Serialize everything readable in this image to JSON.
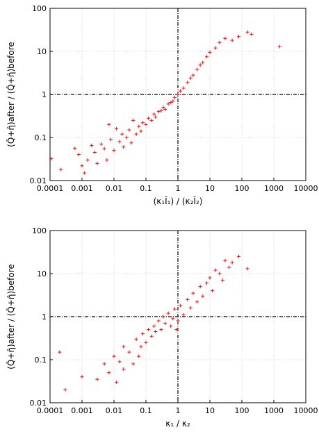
{
  "chart_data": [
    {
      "type": "scatter",
      "title": "",
      "xlabel": "(κ₁Î₁) / (κ₂Î₂)",
      "ylabel": "(Q̂+η̂)after / (Q̂+η̂)before",
      "xscale": "log",
      "yscale": "log",
      "xlim": [
        0.0001,
        10000
      ],
      "ylim": [
        0.01,
        100
      ],
      "x_ticks": [
        "0.0001",
        "0.001",
        "0.01",
        "0.1",
        "1",
        "10",
        "100",
        "1000",
        "10000"
      ],
      "y_ticks": [
        "0.01",
        "0.1",
        "1",
        "10",
        "100"
      ],
      "reference_lines": {
        "x": 1,
        "y": 1
      },
      "grid": true,
      "marker": "+",
      "color": "#ee1111",
      "points": [
        [
          0.00011,
          0.032
        ],
        [
          0.00022,
          0.018
        ],
        [
          0.0006,
          0.056
        ],
        [
          0.0008,
          0.04
        ],
        [
          0.001,
          0.022
        ],
        [
          0.0012,
          0.015
        ],
        [
          0.0015,
          0.03
        ],
        [
          0.002,
          0.065
        ],
        [
          0.0025,
          0.045
        ],
        [
          0.003,
          0.025
        ],
        [
          0.004,
          0.07
        ],
        [
          0.005,
          0.055
        ],
        [
          0.006,
          0.03
        ],
        [
          0.007,
          0.2
        ],
        [
          0.008,
          0.09
        ],
        [
          0.01,
          0.05
        ],
        [
          0.012,
          0.16
        ],
        [
          0.015,
          0.08
        ],
        [
          0.018,
          0.12
        ],
        [
          0.02,
          0.06
        ],
        [
          0.025,
          0.1
        ],
        [
          0.03,
          0.15
        ],
        [
          0.035,
          0.075
        ],
        [
          0.04,
          0.25
        ],
        [
          0.05,
          0.12
        ],
        [
          0.06,
          0.18
        ],
        [
          0.07,
          0.14
        ],
        [
          0.08,
          0.22
        ],
        [
          0.1,
          0.2
        ],
        [
          0.12,
          0.28
        ],
        [
          0.15,
          0.25
        ],
        [
          0.18,
          0.35
        ],
        [
          0.2,
          0.3
        ],
        [
          0.25,
          0.4
        ],
        [
          0.3,
          0.42
        ],
        [
          0.35,
          0.5
        ],
        [
          0.4,
          0.45
        ],
        [
          0.5,
          0.6
        ],
        [
          0.6,
          0.65
        ],
        [
          0.7,
          0.7
        ],
        [
          0.8,
          0.85
        ],
        [
          1.0,
          1.0
        ],
        [
          1.2,
          1.2
        ],
        [
          1.5,
          1.4
        ],
        [
          2.0,
          1.9
        ],
        [
          2.5,
          2.4
        ],
        [
          3.0,
          2.8
        ],
        [
          4.0,
          3.8
        ],
        [
          5.0,
          4.8
        ],
        [
          6.0,
          5.5
        ],
        [
          8.0,
          7.5
        ],
        [
          10.0,
          9.5
        ],
        [
          15.0,
          12.0
        ],
        [
          20.0,
          16.0
        ],
        [
          30.0,
          20.0
        ],
        [
          50.0,
          18.0
        ],
        [
          80.0,
          22.0
        ],
        [
          150.0,
          28.0
        ],
        [
          200.0,
          25.0
        ],
        [
          1500.0,
          13.0
        ]
      ]
    },
    {
      "type": "scatter",
      "title": "",
      "xlabel": "κ₁ / κ₂",
      "ylabel": "(Q̂+η̂)after / (Q̂+η̂)before",
      "xscale": "log",
      "yscale": "log",
      "xlim": [
        0.0001,
        10000
      ],
      "ylim": [
        0.01,
        100
      ],
      "x_ticks": [
        "0.0001",
        "0.001",
        "0.01",
        "0.1",
        "1",
        "10",
        "100",
        "1000",
        "10000"
      ],
      "y_ticks": [
        "0.01",
        "0.1",
        "1",
        "10",
        "100"
      ],
      "reference_lines": {
        "x": 1,
        "y": 1
      },
      "grid": true,
      "marker": "+",
      "color": "#ee1111",
      "points": [
        [
          0.0002,
          0.15
        ],
        [
          0.0003,
          0.02
        ],
        [
          0.001,
          0.04
        ],
        [
          0.003,
          0.035
        ],
        [
          0.005,
          0.08
        ],
        [
          0.007,
          0.05
        ],
        [
          0.01,
          0.12
        ],
        [
          0.012,
          0.03
        ],
        [
          0.015,
          0.09
        ],
        [
          0.02,
          0.06
        ],
        [
          0.02,
          0.2
        ],
        [
          0.03,
          0.15
        ],
        [
          0.04,
          0.08
        ],
        [
          0.05,
          0.3
        ],
        [
          0.06,
          0.12
        ],
        [
          0.07,
          0.2
        ],
        [
          0.08,
          0.4
        ],
        [
          0.1,
          0.25
        ],
        [
          0.12,
          0.5
        ],
        [
          0.15,
          0.35
        ],
        [
          0.18,
          0.6
        ],
        [
          0.2,
          0.45
        ],
        [
          0.25,
          0.8
        ],
        [
          0.3,
          0.5
        ],
        [
          0.35,
          1.0
        ],
        [
          0.4,
          0.7
        ],
        [
          0.5,
          1.2
        ],
        [
          0.6,
          0.6
        ],
        [
          0.7,
          0.9
        ],
        [
          0.8,
          1.5
        ],
        [
          0.9,
          0.5
        ],
        [
          1.0,
          0.8
        ],
        [
          1.2,
          1.8
        ],
        [
          1.5,
          1.1
        ],
        [
          2.0,
          2.5
        ],
        [
          2.5,
          1.6
        ],
        [
          3.0,
          3.5
        ],
        [
          4.0,
          2.2
        ],
        [
          5.0,
          5.0
        ],
        [
          6.0,
          3.0
        ],
        [
          8.0,
          6.0
        ],
        [
          10.0,
          8.0
        ],
        [
          12.0,
          4.0
        ],
        [
          15.0,
          12.0
        ],
        [
          20.0,
          10.0
        ],
        [
          25.0,
          7.0
        ],
        [
          30.0,
          20.0
        ],
        [
          40.0,
          14.0
        ],
        [
          50.0,
          18.0
        ],
        [
          80.0,
          25.0
        ],
        [
          150.0,
          13.0
        ]
      ]
    }
  ]
}
